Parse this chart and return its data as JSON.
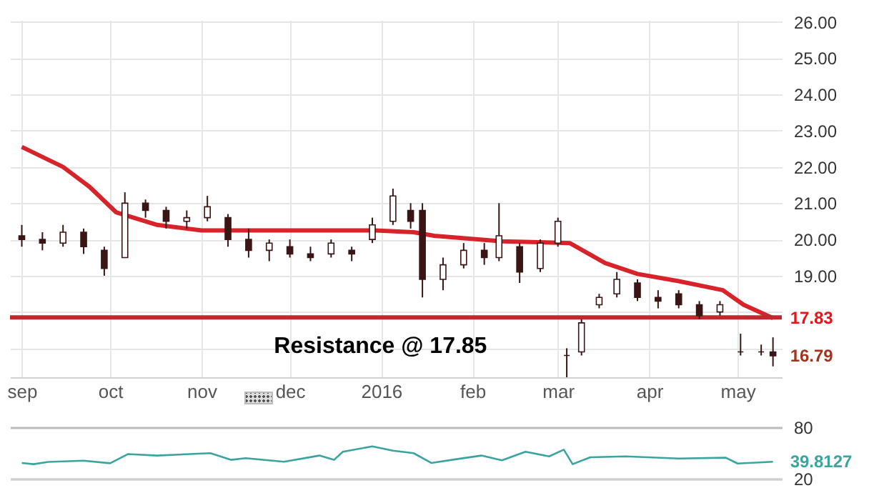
{
  "chart_data": [
    {
      "type": "candlestick",
      "color": "#3b1414",
      "x": [
        "2015-09-01",
        "2015-09-08",
        "2015-09-15",
        "2015-09-22",
        "2015-09-29",
        "2015-10-06",
        "2015-10-13",
        "2015-10-20",
        "2015-10-27",
        "2015-11-03",
        "2015-11-10",
        "2015-11-17",
        "2015-11-24",
        "2015-12-01",
        "2015-12-08",
        "2015-12-15",
        "2015-12-22",
        "2015-12-29",
        "2016-01-05",
        "2016-01-11",
        "2016-01-15",
        "2016-01-22",
        "2016-01-29",
        "2016-02-05",
        "2016-02-10",
        "2016-02-17",
        "2016-02-24",
        "2016-03-01",
        "2016-03-04",
        "2016-03-09",
        "2016-03-15",
        "2016-03-21",
        "2016-03-28",
        "2016-04-04",
        "2016-04-11",
        "2016-04-18",
        "2016-04-25",
        "2016-05-02",
        "2016-05-09",
        "2016-05-13"
      ],
      "ohlc": [
        [
          20.1,
          20.4,
          19.8,
          20.0
        ],
        [
          20.0,
          20.2,
          19.7,
          19.9
        ],
        [
          19.9,
          20.4,
          19.8,
          20.2
        ],
        [
          20.2,
          20.3,
          19.6,
          19.8
        ],
        [
          19.7,
          19.8,
          19.0,
          19.2
        ],
        [
          19.5,
          21.3,
          19.5,
          21.0
        ],
        [
          21.0,
          21.1,
          20.6,
          20.8
        ],
        [
          20.8,
          20.9,
          20.3,
          20.5
        ],
        [
          20.5,
          20.8,
          20.3,
          20.6
        ],
        [
          20.6,
          21.2,
          20.5,
          20.9
        ],
        [
          20.6,
          20.7,
          19.8,
          20.0
        ],
        [
          20.0,
          20.3,
          19.5,
          19.7
        ],
        [
          19.7,
          20.0,
          19.4,
          19.9
        ],
        [
          19.8,
          20.0,
          19.5,
          19.6
        ],
        [
          19.6,
          19.8,
          19.4,
          19.5
        ],
        [
          19.6,
          20.0,
          19.5,
          19.9
        ],
        [
          19.7,
          19.8,
          19.4,
          19.6
        ],
        [
          20.0,
          20.6,
          19.9,
          20.4
        ],
        [
          20.5,
          21.4,
          20.4,
          21.2
        ],
        [
          20.8,
          21.0,
          20.3,
          20.5
        ],
        [
          20.8,
          21.0,
          18.4,
          18.9
        ],
        [
          18.9,
          19.5,
          18.6,
          19.3
        ],
        [
          19.3,
          19.9,
          19.2,
          19.7
        ],
        [
          19.7,
          19.9,
          19.3,
          19.5
        ],
        [
          19.5,
          21.0,
          19.4,
          20.1
        ],
        [
          19.8,
          19.9,
          18.8,
          19.1
        ],
        [
          19.2,
          20.0,
          19.1,
          19.9
        ],
        [
          19.9,
          20.6,
          19.8,
          20.5
        ],
        [
          16.8,
          17.0,
          16.2,
          16.8
        ],
        [
          16.9,
          17.8,
          16.8,
          17.7
        ],
        [
          18.2,
          18.5,
          18.1,
          18.4
        ],
        [
          18.5,
          19.1,
          18.4,
          18.9
        ],
        [
          18.8,
          18.9,
          18.3,
          18.4
        ],
        [
          18.4,
          18.6,
          18.1,
          18.3
        ],
        [
          18.5,
          18.6,
          18.1,
          18.2
        ],
        [
          18.2,
          18.3,
          17.8,
          17.9
        ],
        [
          18.0,
          18.3,
          17.9,
          18.2
        ],
        [
          16.9,
          17.4,
          16.8,
          16.9
        ],
        [
          16.9,
          17.1,
          16.8,
          16.9
        ],
        [
          16.9,
          17.3,
          16.5,
          16.79
        ]
      ],
      "series": [
        {
          "type": "line",
          "color": "#d8232a",
          "x": [
            "2015-09-01",
            "2015-09-15",
            "2015-09-24",
            "2015-10-03",
            "2015-10-17",
            "2015-11-01",
            "2015-12-02",
            "2015-12-30",
            "2016-01-12",
            "2016-01-19",
            "2016-02-11",
            "2016-03-05",
            "2016-03-17",
            "2016-03-28",
            "2016-04-11",
            "2016-04-26",
            "2016-05-03",
            "2016-05-13"
          ],
          "values": [
            22.55,
            22.0,
            21.45,
            20.75,
            20.4,
            20.25,
            20.25,
            20.25,
            20.2,
            20.1,
            19.95,
            19.9,
            19.35,
            19.05,
            18.85,
            18.6,
            18.2,
            17.83
          ]
        }
      ],
      "xlim": [
        "2015-08-28",
        "2016-05-16"
      ],
      "xticks": [
        {
          "value": "2015-09-01",
          "label": "sep"
        },
        {
          "value": "2015-10-01",
          "label": "oct"
        },
        {
          "value": "2015-11-01",
          "label": "nov"
        },
        {
          "value": "2015-12-01",
          "label": "dec"
        },
        {
          "value": "2016-01-01",
          "label": "2016"
        },
        {
          "value": "2016-02-01",
          "label": "feb"
        },
        {
          "value": "2016-03-01",
          "label": "mar"
        },
        {
          "value": "2016-04-01",
          "label": "apr"
        },
        {
          "value": "2016-05-01",
          "label": "may"
        }
      ],
      "ylim": [
        16.2,
        26.05
      ],
      "yticks": [
        {
          "value": 17,
          "label": null
        },
        {
          "value": 18,
          "label": null
        },
        {
          "value": 19,
          "label": "19.00"
        },
        {
          "value": 20,
          "label": "20.00"
        },
        {
          "value": 21,
          "label": "21.00"
        },
        {
          "value": 22,
          "label": "22.00"
        },
        {
          "value": 23,
          "label": "23.00"
        },
        {
          "value": 24,
          "label": "24.00"
        },
        {
          "value": 25,
          "label": "25.00"
        },
        {
          "value": 26,
          "label": "26.00"
        }
      ],
      "grid": true,
      "ref_lines": [
        {
          "axis": "y",
          "value": 17.85,
          "label": "Resistance @ 17.85",
          "color": "#c0282e"
        }
      ],
      "annotations": [
        {
          "text": "17.83",
          "x": "2016-05-13",
          "y": 17.83
        },
        {
          "text": "16.79",
          "x": "2016-05-13",
          "y": 16.79
        }
      ]
    },
    {
      "type": "line",
      "color": "#3aa5a0",
      "x": [
        "2015-09-01",
        "2015-09-05",
        "2015-09-10",
        "2015-09-22",
        "2015-10-01",
        "2015-10-07",
        "2015-10-17",
        "2015-11-04",
        "2015-11-11",
        "2015-11-16",
        "2015-11-29",
        "2015-12-11",
        "2015-12-16",
        "2015-12-19",
        "2015-12-29",
        "2016-01-05",
        "2016-01-12",
        "2016-01-18",
        "2016-01-27",
        "2016-02-04",
        "2016-02-11",
        "2016-02-19",
        "2016-02-27",
        "2016-03-03",
        "2016-03-06",
        "2016-03-12",
        "2016-03-24",
        "2016-04-11",
        "2016-04-27",
        "2016-05-01",
        "2016-05-13"
      ],
      "values": [
        38.4,
        37,
        39.6,
        41,
        38,
        48.7,
        47,
        49.8,
        42,
        44,
        39.8,
        47,
        42,
        51.5,
        57.7,
        52.7,
        49.8,
        38.4,
        43,
        47,
        41.5,
        51.5,
        46,
        53.8,
        37,
        45,
        46,
        43.5,
        44.5,
        37.7,
        39.8127
      ],
      "xlim": [
        "2015-08-28",
        "2016-05-16"
      ],
      "ylim": [
        20,
        80
      ],
      "yticks": [
        20,
        80
      ],
      "grid": "y",
      "tick_labels": "y",
      "annotations": [
        {
          "text": "39.8127",
          "x": "2016-05-13",
          "y": 39.8127
        }
      ]
    }
  ]
}
